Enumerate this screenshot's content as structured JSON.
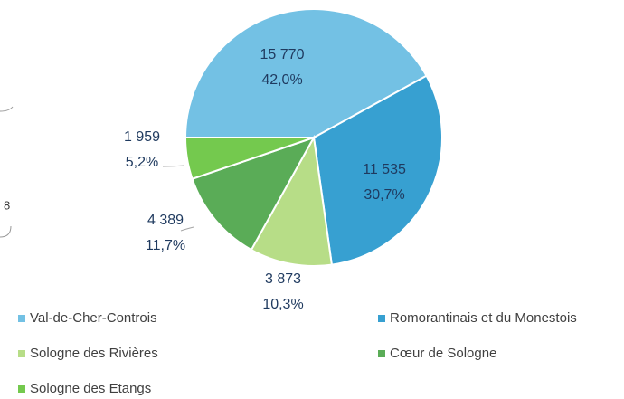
{
  "chart_data": {
    "type": "pie",
    "categories": [
      "Val-de-Cher-Controis",
      "Romorantinais et du Monestois",
      "Sologne des Rivières",
      "Cœur de Sologne",
      "Sologne des Etangs"
    ],
    "values": [
      15770,
      11535,
      3873,
      4389,
      1959
    ],
    "value_labels": [
      "15 770",
      "11 535",
      "3 873",
      "4 389",
      "1 959"
    ],
    "percentages": [
      42.0,
      30.7,
      10.3,
      11.7,
      5.2
    ],
    "percentage_labels": [
      "42,0%",
      "30,7%",
      "10,3%",
      "11,7%",
      "5,2%"
    ],
    "colors": [
      "#73c1e4",
      "#37a0d1",
      "#b7dd87",
      "#5aac57",
      "#74c94e"
    ],
    "legend": "bottom"
  },
  "fragments": [
    "8"
  ]
}
